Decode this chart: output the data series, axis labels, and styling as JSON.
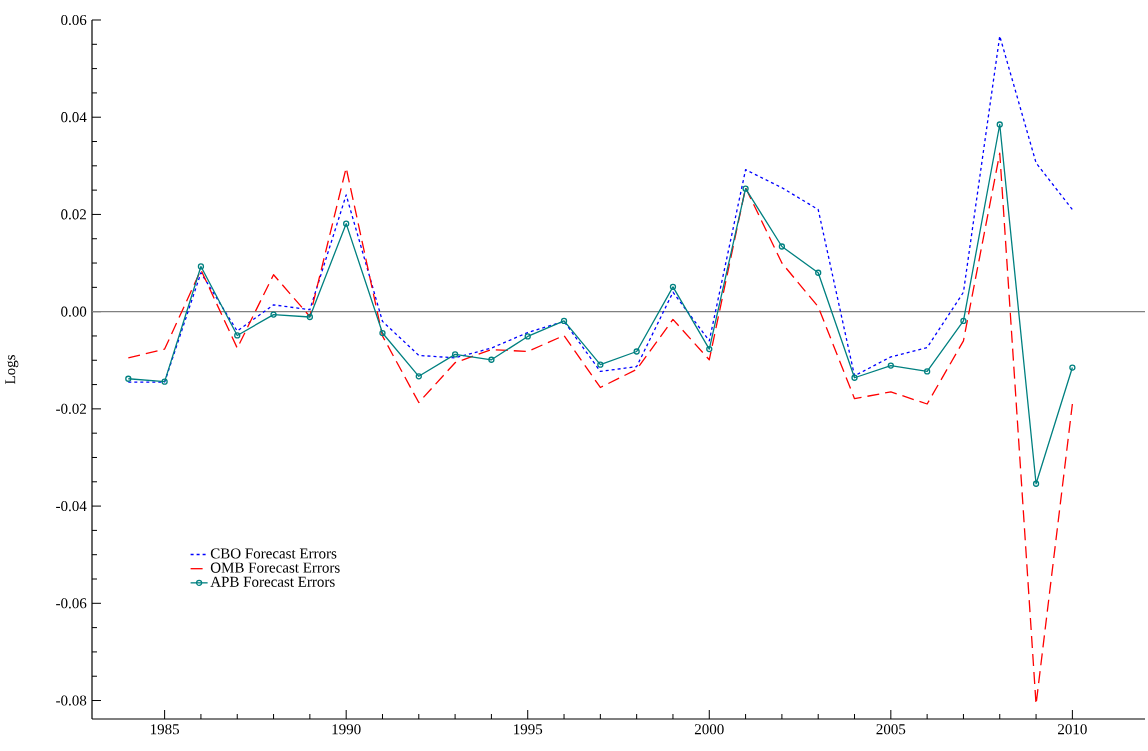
{
  "chart_data": {
    "type": "line",
    "ylabel": "Logs",
    "x": [
      1984,
      1985,
      1986,
      1987,
      1988,
      1989,
      1990,
      1991,
      1992,
      1993,
      1994,
      1995,
      1996,
      1997,
      1998,
      1999,
      2000,
      2001,
      2002,
      2003,
      2004,
      2005,
      2006,
      2007,
      2008,
      2009,
      2010
    ],
    "series": [
      {
        "name": "CBO Forecast Errors",
        "color": "#0000ff",
        "line_style": "dotted",
        "marker": "none",
        "values": [
          -0.0145,
          -0.0145,
          0.008,
          -0.004,
          0.0014,
          0.0004,
          0.024,
          -0.002,
          -0.009,
          -0.0095,
          -0.0075,
          -0.0043,
          -0.002,
          -0.0123,
          -0.0113,
          0.004,
          -0.006,
          0.0292,
          0.0255,
          0.021,
          -0.0132,
          -0.0093,
          -0.0074,
          0.004,
          0.0567,
          0.0306,
          0.021
        ]
      },
      {
        "name": "OMB Forecast Errors",
        "color": "#ff0000",
        "line_style": "dashed",
        "marker": "none",
        "values": [
          -0.0095,
          -0.0077,
          0.0086,
          -0.0075,
          0.0076,
          -0.001,
          0.0296,
          -0.005,
          -0.0187,
          -0.0105,
          -0.0078,
          -0.0082,
          -0.0049,
          -0.0156,
          -0.0119,
          -0.0016,
          -0.0099,
          0.0255,
          0.01,
          0.001,
          -0.0179,
          -0.0165,
          -0.019,
          -0.006,
          0.0326,
          -0.0808,
          -0.019
        ]
      },
      {
        "name": "APB Forecast Errors",
        "color": "#008080",
        "line_style": "solid",
        "marker": "circle",
        "values": [
          -0.0138,
          -0.0144,
          0.0093,
          -0.0049,
          -0.0006,
          -0.0011,
          0.0181,
          -0.0044,
          -0.0133,
          -0.0088,
          -0.0099,
          -0.0051,
          -0.0019,
          -0.0109,
          -0.0082,
          0.0051,
          -0.0077,
          0.0253,
          0.0134,
          0.008,
          -0.0136,
          -0.0111,
          -0.0123,
          -0.0019,
          0.0385,
          -0.0354,
          -0.0115
        ]
      }
    ],
    "xlim": [
      1983,
      2012
    ],
    "ylim": [
      -0.0838,
      0.06
    ],
    "xticks": [
      1985,
      1990,
      1995,
      2000,
      2005,
      2010
    ],
    "yticks": [
      {
        "value": 0.06,
        "label": "0.06"
      },
      {
        "value": 0.04,
        "label": "0.04"
      },
      {
        "value": 0.02,
        "label": "0.02"
      },
      {
        "value": 0,
        "label": "0.00"
      },
      {
        "value": -0.02,
        "label": "-0.02"
      },
      {
        "value": -0.04,
        "label": "-0.04"
      },
      {
        "value": -0.06,
        "label": "-0.06"
      },
      {
        "value": -0.08,
        "label": "-0.08"
      }
    ],
    "ref_lines": [
      {
        "axis": "y",
        "value": 0,
        "color": "#808080"
      }
    ],
    "legend": "bottom left",
    "grid": false
  }
}
